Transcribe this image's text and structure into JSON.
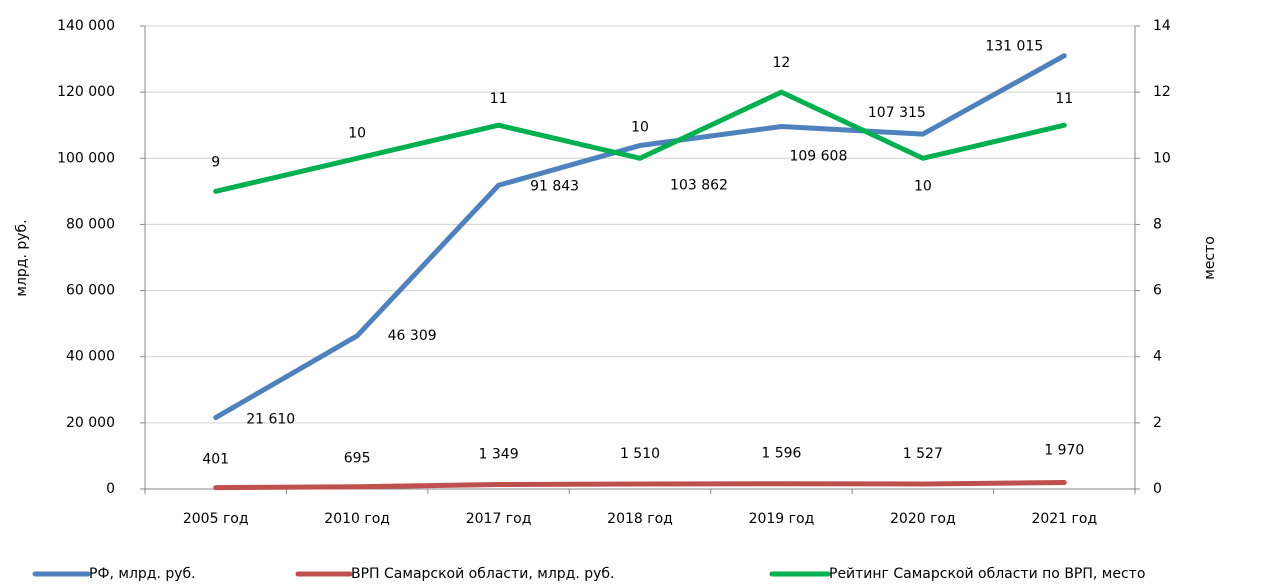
{
  "chart_data": {
    "type": "line",
    "categories": [
      "2005 год",
      "2010 год",
      "2017 год",
      "2018 год",
      "2019 год",
      "2020 год",
      "2021 год"
    ],
    "ylabel": "млрд. руб.",
    "y2label": "место",
    "ylim": [
      0,
      140000
    ],
    "yticks": [
      0,
      {
        "value": 20000,
        "label": "20 000"
      },
      {
        "value": 40000,
        "label": "40 000"
      },
      {
        "value": 60000,
        "label": "60 000"
      },
      {
        "value": 80000,
        "label": "80 000"
      },
      {
        "value": 100000,
        "label": "100 000"
      },
      {
        "value": 120000,
        "label": "120 000"
      },
      {
        "value": 140000,
        "label": "140 000"
      }
    ],
    "y2lim": [
      0,
      14
    ],
    "y2ticks": [
      0,
      2,
      4,
      6,
      8,
      10,
      12,
      14
    ],
    "grid": true,
    "legend": "bottom",
    "series": [
      {
        "name": "РФ, млрд. руб.",
        "color": "#4f81bd",
        "values": [
          21610,
          46309,
          91843,
          103862,
          109608,
          107315,
          131015
        ],
        "value_labels": [
          "21 610",
          "46 309",
          "91 843",
          "103 862",
          "109 608",
          "107 315",
          "131 015"
        ]
      },
      {
        "name": "ВРП Самарской области, млрд. руб.",
        "color": "#c0504d",
        "values": [
          401,
          695,
          1349,
          1510,
          1596,
          1527,
          1970
        ],
        "value_labels": [
          "401",
          "695",
          "1 349",
          "1 510",
          "1 596",
          "1 527",
          "1 970"
        ]
      },
      {
        "name": "Рейтинг Самарской области по ВРП, место",
        "color": "#00b050",
        "axis": "y2",
        "values": [
          9,
          10,
          11,
          10,
          12,
          10,
          11
        ]
      }
    ]
  }
}
